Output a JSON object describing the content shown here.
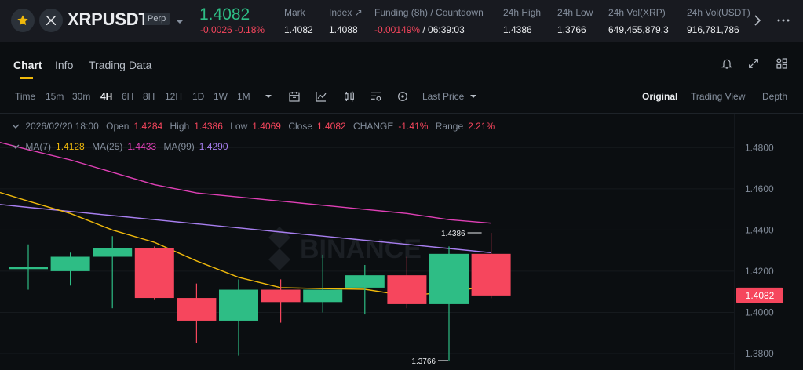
{
  "header": {
    "symbol": "XRPUSDT",
    "contract_type": "Perp",
    "last_price": "1.4082",
    "change": "-0.0026 -0.18%",
    "stats": [
      {
        "label": "Mark",
        "value": "1.4082",
        "color": "#eaecef"
      },
      {
        "label": "Index ↗",
        "value": "1.4088",
        "color": "#eaecef"
      },
      {
        "label": "Funding (8h) / Countdown",
        "value": "-0.00149%",
        "value2": " / 06:39:03",
        "color": "#f6465d"
      },
      {
        "label": "24h High",
        "value": "1.4386",
        "color": "#eaecef"
      },
      {
        "label": "24h Low",
        "value": "1.3766",
        "color": "#eaecef"
      },
      {
        "label": "24h Vol(XRP)",
        "value": "649,455,879.3",
        "color": "#eaecef"
      },
      {
        "label": "24h Vol(USDT)",
        "value": "916,781,786",
        "color": "#eaecef"
      }
    ]
  },
  "tabs": {
    "chart": "Chart",
    "info": "Info",
    "trading_data": "Trading Data"
  },
  "toolbar": {
    "timeframes": [
      "Time",
      "15m",
      "30m",
      "4H",
      "6H",
      "8H",
      "12H",
      "1D",
      "1W",
      "1M"
    ],
    "active_timeframe": "4H",
    "price_type": "Last Price",
    "views": [
      "Original",
      "Trading View",
      "Depth"
    ],
    "active_view": "Original"
  },
  "ohlc": {
    "date": "2026/02/20 18:00",
    "open_label": "Open",
    "open": "1.4284",
    "high_label": "High",
    "high": "1.4386",
    "low_label": "Low",
    "low": "1.4069",
    "close_label": "Close",
    "close": "1.4082",
    "change_label": "CHANGE",
    "change": "-1.41%",
    "range_label": "Range",
    "range": "2.21%"
  },
  "ma": {
    "ma7_label": "MA(7)",
    "ma7": "1.4128",
    "ma25_label": "MA(25)",
    "ma25": "1.4433",
    "ma99_label": "MA(99)",
    "ma99": "1.4290"
  },
  "colors": {
    "up": "#2ebd85",
    "down": "#f6465d",
    "ma7": "#f0b90b",
    "ma25": "#e040b6",
    "ma99": "#a87ff0",
    "accent": "#f0b90b"
  },
  "chart_data": {
    "type": "candlestick",
    "yticks": [
      1.48,
      1.46,
      1.44,
      1.42,
      1.4,
      1.38
    ],
    "ylim": [
      1.372,
      1.49
    ],
    "current_price_label": "1.4082",
    "high_marker": "1.4386",
    "low_marker": "1.3766",
    "watermark": "BINANCE",
    "candles": [
      {
        "o": 1.421,
        "h": 1.433,
        "l": 1.411,
        "c": 1.422
      },
      {
        "o": 1.42,
        "h": 1.429,
        "l": 1.413,
        "c": 1.427
      },
      {
        "o": 1.427,
        "h": 1.437,
        "l": 1.402,
        "c": 1.431
      },
      {
        "o": 1.431,
        "h": 1.432,
        "l": 1.406,
        "c": 1.407
      },
      {
        "o": 1.407,
        "h": 1.414,
        "l": 1.385,
        "c": 1.396
      },
      {
        "o": 1.396,
        "h": 1.416,
        "l": 1.379,
        "c": 1.411
      },
      {
        "o": 1.411,
        "h": 1.416,
        "l": 1.395,
        "c": 1.405
      },
      {
        "o": 1.405,
        "h": 1.428,
        "l": 1.4,
        "c": 1.411
      },
      {
        "o": 1.412,
        "h": 1.423,
        "l": 1.399,
        "c": 1.418
      },
      {
        "o": 1.418,
        "h": 1.427,
        "l": 1.402,
        "c": 1.404
      },
      {
        "o": 1.404,
        "h": 1.432,
        "l": 1.3766,
        "c": 1.4284
      },
      {
        "o": 1.4284,
        "h": 1.4386,
        "l": 1.4069,
        "c": 1.4082
      }
    ],
    "ma7": [
      1.454,
      1.448,
      1.44,
      1.434,
      1.425,
      1.417,
      1.412,
      1.4115,
      1.4112,
      1.408,
      1.41,
      1.4128
    ],
    "ma25": [
      1.479,
      1.474,
      1.468,
      1.462,
      1.458,
      1.456,
      1.454,
      1.452,
      1.45,
      1.448,
      1.445,
      1.4433
    ],
    "ma99": [
      1.451,
      1.449,
      1.447,
      1.445,
      1.443,
      1.441,
      1.439,
      1.437,
      1.435,
      1.433,
      1.431,
      1.429
    ]
  }
}
